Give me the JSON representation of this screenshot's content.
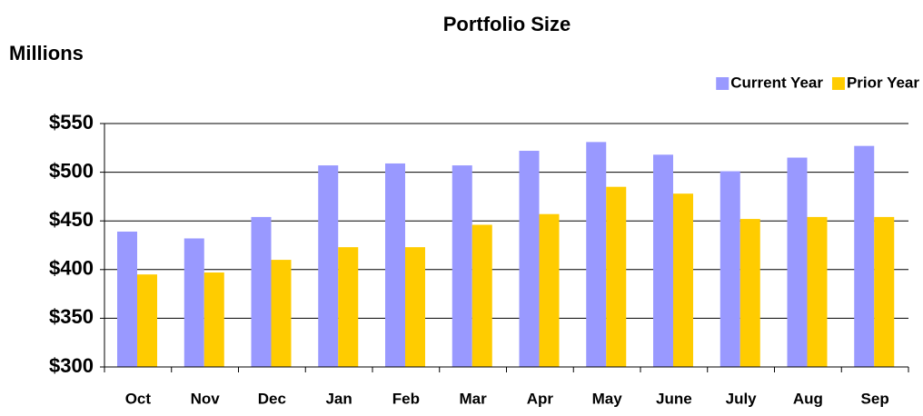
{
  "chart_data": {
    "type": "bar",
    "title": "Portfolio Size",
    "ylabel": "Millions",
    "categories": [
      "Oct",
      "Nov",
      "Dec",
      "Jan",
      "Feb",
      "Mar",
      "Apr",
      "May",
      "June",
      "July",
      "Aug",
      "Sep"
    ],
    "series": [
      {
        "name": "Current Year",
        "color": "#9999ff",
        "values": [
          439,
          432,
          454,
          507,
          509,
          507,
          522,
          531,
          518,
          501,
          515,
          527
        ]
      },
      {
        "name": "Prior Year",
        "color": "#ffcc00",
        "values": [
          395,
          397,
          410,
          423,
          423,
          446,
          457,
          485,
          478,
          452,
          454,
          454
        ]
      }
    ],
    "ylim": [
      300,
      550
    ],
    "yticks": [
      {
        "value": 300,
        "label": "$300"
      },
      {
        "value": 350,
        "label": "$350"
      },
      {
        "value": 400,
        "label": "$400"
      },
      {
        "value": 450,
        "label": "$450"
      },
      {
        "value": 500,
        "label": "$500"
      },
      {
        "value": 550,
        "label": "$550"
      }
    ],
    "grid": true,
    "legend": "top-right"
  }
}
